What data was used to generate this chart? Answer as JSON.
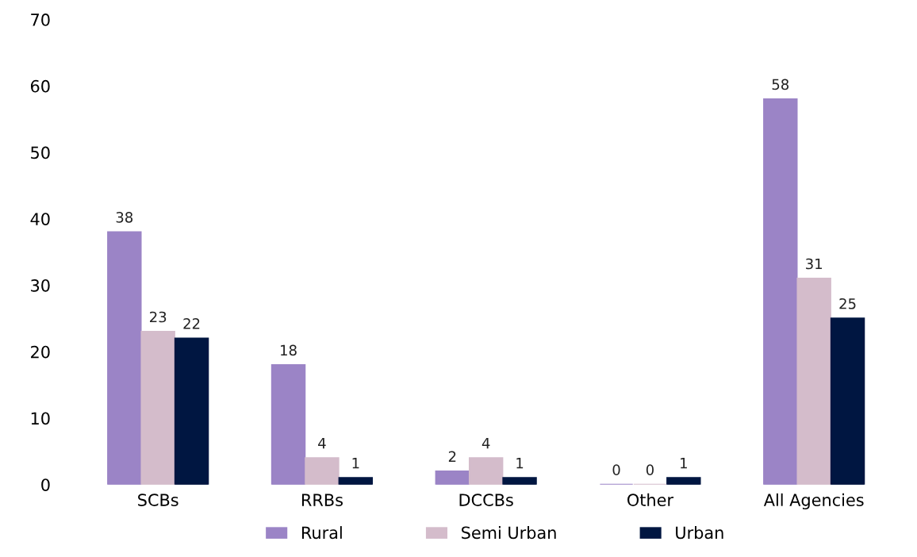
{
  "chart_data": {
    "type": "bar",
    "categories": [
      "SCBs",
      "RRBs",
      "DCCBs",
      "Other",
      "All Agencies"
    ],
    "series": [
      {
        "name": "Rural",
        "color": "#9b84c6",
        "values": [
          38,
          18,
          2,
          0,
          58
        ]
      },
      {
        "name": "Semi Urban",
        "color": "#d4bccb",
        "values": [
          23,
          4,
          4,
          0,
          31
        ]
      },
      {
        "name": "Urban",
        "color": "#001641",
        "values": [
          22,
          1,
          1,
          1,
          25
        ]
      }
    ],
    "ylim": [
      0,
      70
    ],
    "yticks": [
      0,
      10,
      20,
      30,
      40,
      50,
      60,
      70
    ],
    "data_labels": true,
    "legend": "bottom",
    "grid": false
  }
}
